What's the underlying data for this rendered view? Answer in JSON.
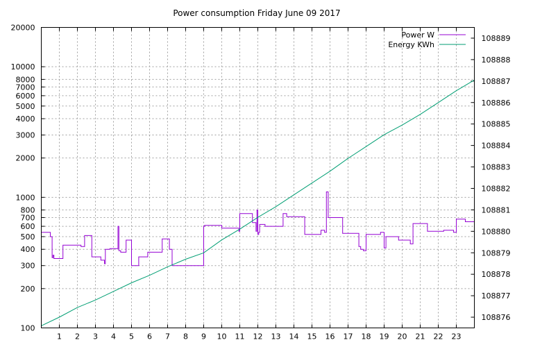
{
  "chart_data": {
    "type": "line",
    "title": "Power consumption Friday June 09 2017",
    "xlabel": "",
    "ylabel": "",
    "y2label": "",
    "x_ticks": [
      1,
      2,
      3,
      4,
      5,
      6,
      7,
      8,
      9,
      10,
      11,
      12,
      13,
      14,
      15,
      16,
      17,
      18,
      19,
      20,
      21,
      22,
      23
    ],
    "xlim": [
      0,
      24
    ],
    "y_scale": "log",
    "ylim": [
      100,
      20000
    ],
    "y_ticks": [
      100,
      200,
      300,
      400,
      500,
      600,
      700,
      800,
      1000,
      2000,
      3000,
      4000,
      5000,
      6000,
      7000,
      8000,
      10000,
      20000
    ],
    "y2lim": [
      108875.5,
      108889.5
    ],
    "y2_ticks": [
      108876,
      108877,
      108878,
      108879,
      108880,
      108881,
      108882,
      108883,
      108884,
      108885,
      108886,
      108887,
      108888,
      108889
    ],
    "grid": true,
    "legend_position": "top-right",
    "series": [
      {
        "name": "Power W",
        "axis": "y",
        "color": "#9400d3",
        "step": true,
        "x": [
          0,
          0.5,
          0.6,
          0.65,
          0.7,
          1.2,
          2.2,
          2.4,
          2.7,
          2.8,
          3.3,
          3.5,
          3.55,
          3.8,
          4.25,
          4.3,
          4.4,
          4.7,
          4.75,
          5.0,
          5.3,
          5.4,
          5.9,
          6.0,
          6.6,
          6.7,
          6.9,
          7.1,
          7.25,
          7.3,
          7.45,
          7.6,
          8.6,
          9.0,
          9.05,
          9.5,
          10.0,
          10.5,
          10.95,
          11.0,
          11.5,
          11.7,
          11.9,
          11.95,
          12.0,
          12.05,
          12.1,
          12.4,
          12.6,
          13.3,
          13.4,
          13.6,
          14.2,
          14.6,
          15.0,
          15.5,
          15.7,
          15.8,
          15.9,
          16.3,
          16.7,
          17.5,
          17.6,
          17.7,
          17.85,
          18.0,
          18.5,
          18.8,
          19.0,
          19.1,
          19.3,
          19.8,
          20.3,
          20.45,
          20.6,
          21.4,
          21.5,
          22.3,
          22.8,
          22.85,
          23.0,
          23.5,
          24.0
        ],
        "y": [
          540,
          500,
          345,
          360,
          340,
          430,
          420,
          510,
          510,
          350,
          330,
          310,
          400,
          405,
          600,
          390,
          380,
          470,
          470,
          300,
          300,
          350,
          380,
          380,
          380,
          480,
          480,
          400,
          300,
          300,
          300,
          300,
          300,
          600,
          610,
          610,
          580,
          580,
          550,
          750,
          750,
          640,
          550,
          800,
          520,
          540,
          620,
          600,
          600,
          600,
          750,
          710,
          710,
          520,
          520,
          560,
          540,
          1100,
          700,
          700,
          530,
          530,
          420,
          400,
          390,
          520,
          520,
          540,
          410,
          500,
          500,
          470,
          470,
          440,
          630,
          550,
          550,
          560,
          560,
          540,
          680,
          650,
          650
        ]
      },
      {
        "name": "Energy KWh",
        "axis": "y2",
        "color": "#009e73",
        "step": false,
        "x": [
          0,
          1,
          2,
          3,
          4,
          5,
          6,
          7,
          8,
          9,
          10,
          11,
          12,
          13,
          14,
          15,
          16,
          17,
          18,
          19,
          20,
          21,
          22,
          23,
          24
        ],
        "y": [
          108875.6,
          108876.0,
          108876.45,
          108876.8,
          108877.2,
          108877.6,
          108877.95,
          108878.35,
          108878.7,
          108879.0,
          108879.6,
          108880.1,
          108880.65,
          108881.15,
          108881.7,
          108882.25,
          108882.8,
          108883.4,
          108883.95,
          108884.5,
          108884.95,
          108885.45,
          108886.0,
          108886.55,
          108887.05
        ]
      }
    ]
  }
}
